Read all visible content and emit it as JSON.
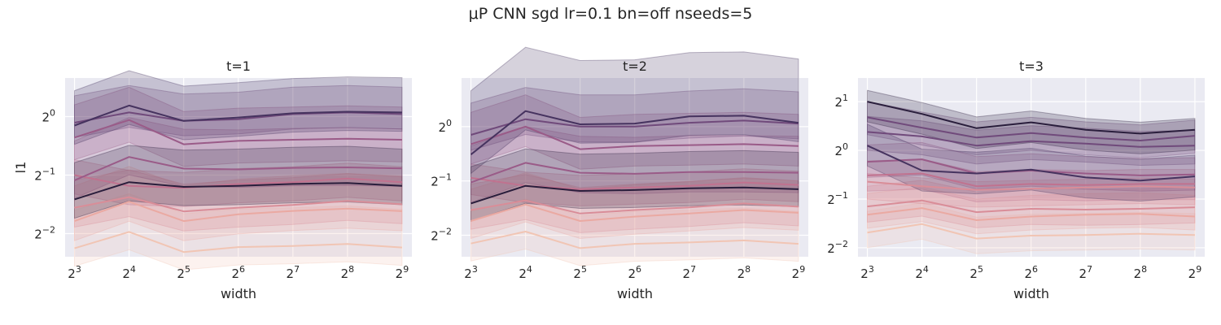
{
  "figure": {
    "title": "μP CNN sgd lr=0.1 bn=off nseeds=5"
  },
  "colors": {
    "background": "#ffffff",
    "panel": "#eaeaf2",
    "grid": "#ffffff",
    "text": "#262626",
    "series": [
      "#f1c5b4",
      "#eaa9a2",
      "#d98d98",
      "#c0728f",
      "#9a5b88",
      "#704a7b",
      "#46335f",
      "#2a1e3c"
    ]
  },
  "chart_data": [
    {
      "type": "line",
      "title": "t=1",
      "xlabel": "width",
      "ylabel": "l1",
      "x_scale": "log2",
      "y_scale": "log2",
      "x": [
        8,
        16,
        32,
        64,
        128,
        256,
        512
      ],
      "x_ticks": [
        {
          "base": "2",
          "exp": "3"
        },
        {
          "base": "2",
          "exp": "4"
        },
        {
          "base": "2",
          "exp": "5"
        },
        {
          "base": "2",
          "exp": "6"
        },
        {
          "base": "2",
          "exp": "7"
        },
        {
          "base": "2",
          "exp": "8"
        },
        {
          "base": "2",
          "exp": "9"
        }
      ],
      "y_ticks": [
        {
          "value": 0.25,
          "base": "2",
          "exp": "−2"
        },
        {
          "value": 0.5,
          "base": "2",
          "exp": "−1"
        },
        {
          "value": 1,
          "base": "2",
          "exp": "0"
        }
      ],
      "xlim": [
        7.1,
        580
      ],
      "ylim": [
        0.19,
        1.58
      ],
      "series": [
        {
          "values": [
            0.21,
            0.255,
            0.201,
            0.213,
            0.216,
            0.221,
            0.212
          ],
          "band": [
            0.17,
            0.33
          ]
        },
        {
          "values": [
            0.29,
            0.365,
            0.29,
            0.314,
            0.327,
            0.336,
            0.326
          ],
          "band": [
            0.23,
            0.44
          ]
        },
        {
          "values": [
            0.34,
            0.385,
            0.325,
            0.34,
            0.351,
            0.368,
            0.354
          ],
          "band": [
            0.27,
            0.47
          ]
        },
        {
          "values": [
            0.5,
            0.44,
            0.43,
            0.45,
            0.46,
            0.48,
            0.46
          ],
          "band": [
            0.4,
            0.6
          ]
        },
        {
          "values": [
            0.47,
            0.62,
            0.54,
            0.535,
            0.545,
            0.548,
            0.541
          ],
          "band": [
            0.38,
            0.75
          ]
        },
        {
          "values": [
            0.78,
            0.96,
            0.72,
            0.75,
            0.76,
            0.77,
            0.76
          ],
          "band": [
            0.6,
            1.15
          ]
        },
        {
          "values": [
            0.93,
            1.05,
            0.95,
            0.97,
            1.03,
            1.05,
            1.03
          ],
          "band": [
            0.78,
            1.28
          ]
        },
        {
          "values": [
            0.9,
            1.14,
            0.95,
            0.99,
            1.04,
            1.06,
            1.05
          ],
          "band": [
            0.72,
            1.36
          ]
        },
        {
          "values": [
            0.375,
            0.46,
            0.435,
            0.44,
            0.45,
            0.455,
            0.44
          ],
          "band": [
            0.3,
            0.58
          ]
        }
      ]
    },
    {
      "type": "line",
      "title": "t=2",
      "xlabel": "width",
      "ylabel": "",
      "x_scale": "log2",
      "y_scale": "log2",
      "x": [
        8,
        16,
        32,
        64,
        128,
        256,
        512
      ],
      "x_ticks": [
        {
          "base": "2",
          "exp": "3"
        },
        {
          "base": "2",
          "exp": "4"
        },
        {
          "base": "2",
          "exp": "5"
        },
        {
          "base": "2",
          "exp": "6"
        },
        {
          "base": "2",
          "exp": "7"
        },
        {
          "base": "2",
          "exp": "8"
        },
        {
          "base": "2",
          "exp": "9"
        }
      ],
      "y_ticks": [
        {
          "value": 0.25,
          "base": "2",
          "exp": "−2"
        },
        {
          "value": 0.5,
          "base": "2",
          "exp": "−1"
        },
        {
          "value": 1,
          "base": "2",
          "exp": "0"
        }
      ],
      "xlim": [
        7.1,
        580
      ],
      "ylim": [
        0.19,
        1.86
      ],
      "series": [
        {
          "values": [
            0.225,
            0.262,
            0.212,
            0.224,
            0.228,
            0.234,
            0.224
          ],
          "band": [
            0.18,
            0.34
          ]
        },
        {
          "values": [
            0.3,
            0.37,
            0.3,
            0.317,
            0.33,
            0.345,
            0.333
          ],
          "band": [
            0.24,
            0.45
          ]
        },
        {
          "values": [
            0.345,
            0.39,
            0.33,
            0.345,
            0.357,
            0.375,
            0.36
          ],
          "band": [
            0.27,
            0.48
          ]
        },
        {
          "values": [
            0.52,
            0.47,
            0.45,
            0.46,
            0.47,
            0.49,
            0.475
          ],
          "band": [
            0.42,
            0.62
          ]
        },
        {
          "values": [
            0.49,
            0.63,
            0.555,
            0.548,
            0.56,
            0.56,
            0.555
          ],
          "band": [
            0.38,
            0.78
          ]
        },
        {
          "values": [
            0.8,
            1.0,
            0.75,
            0.78,
            0.79,
            0.8,
            0.78
          ],
          "band": [
            0.62,
            1.2
          ]
        },
        {
          "values": [
            0.9,
            1.1,
            1.0,
            1.0,
            1.05,
            1.08,
            1.04
          ],
          "band": [
            0.74,
            1.35
          ]
        },
        {
          "values": [
            0.7,
            1.22,
            1.03,
            1.04,
            1.14,
            1.15,
            1.05
          ],
          "band": [
            0.55,
            1.58
          ]
        },
        {
          "values": [
            0.375,
            0.47,
            0.44,
            0.445,
            0.455,
            0.46,
            0.45
          ],
          "band": [
            0.3,
            0.6
          ]
        }
      ]
    },
    {
      "type": "line",
      "title": "t=3",
      "xlabel": "width",
      "ylabel": "",
      "x_scale": "log2",
      "y_scale": "log2",
      "x": [
        8,
        16,
        32,
        64,
        128,
        256,
        512
      ],
      "x_ticks": [
        {
          "base": "2",
          "exp": "3"
        },
        {
          "base": "2",
          "exp": "4"
        },
        {
          "base": "2",
          "exp": "5"
        },
        {
          "base": "2",
          "exp": "6"
        },
        {
          "base": "2",
          "exp": "7"
        },
        {
          "base": "2",
          "exp": "8"
        },
        {
          "base": "2",
          "exp": "9"
        }
      ],
      "y_ticks": [
        {
          "value": 0.25,
          "base": "2",
          "exp": "−2"
        },
        {
          "value": 0.5,
          "base": "2",
          "exp": "−1"
        },
        {
          "value": 1,
          "base": "2",
          "exp": "0"
        },
        {
          "value": 2,
          "base": "2",
          "exp": "1"
        }
      ],
      "xlim": [
        7.1,
        580
      ],
      "ylim": [
        0.22,
        2.8
      ],
      "series": [
        {
          "values": [
            0.31,
            0.35,
            0.285,
            0.297,
            0.3,
            0.305,
            0.3
          ],
          "band": [
            0.25,
            0.42
          ]
        },
        {
          "values": [
            0.4,
            0.44,
            0.37,
            0.39,
            0.4,
            0.405,
            0.39
          ],
          "band": [
            0.33,
            0.54
          ]
        },
        {
          "values": [
            0.45,
            0.49,
            0.415,
            0.435,
            0.43,
            0.435,
            0.445
          ],
          "band": [
            0.36,
            0.6
          ]
        },
        {
          "values": [
            0.64,
            0.6,
            0.57,
            0.58,
            0.59,
            0.6,
            0.59
          ],
          "band": [
            0.5,
            0.72
          ]
        },
        {
          "values": [
            0.7,
            0.72,
            0.6,
            0.62,
            0.61,
            0.62,
            0.62
          ],
          "band": [
            0.56,
            0.86
          ]
        },
        {
          "values": [
            0.85,
            0.88,
            0.72,
            0.75,
            0.72,
            0.7,
            0.71
          ],
          "band": [
            0.68,
            1.08
          ]
        },
        {
          "values": [
            1.3,
            1.22,
            1.07,
            1.14,
            1.1,
            1.05,
            1.07
          ],
          "band": [
            1.0,
            1.62
          ]
        },
        {
          "values": [
            1.6,
            1.38,
            1.2,
            1.28,
            1.2,
            1.15,
            1.23
          ],
          "band": [
            1.25,
            2.0
          ]
        },
        {
          "values": [
            1.07,
            0.75,
            0.72,
            0.76,
            0.68,
            0.65,
            0.69
          ],
          "band": [
            0.8,
            1.45
          ]
        },
        {
          "values": [
            2.0,
            1.68,
            1.37,
            1.49,
            1.34,
            1.27,
            1.34
          ],
          "band": [
            1.5,
            2.35
          ]
        }
      ]
    }
  ]
}
